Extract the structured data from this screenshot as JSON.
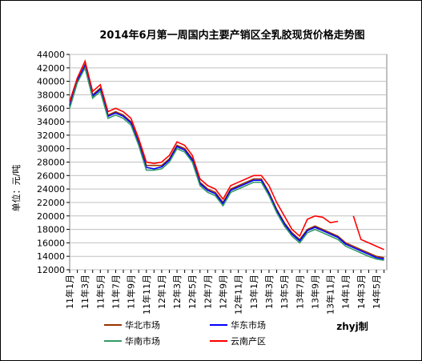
{
  "chart_data": {
    "type": "line",
    "title": "2014年6月第一周国内主要产销区全乳胶现货价格走势图",
    "ylabel": "单位：元/吨",
    "credit": "zhyj制",
    "categories": [
      "11年1月",
      null,
      "11年3月",
      null,
      "11年5月",
      null,
      "11年7月",
      null,
      "11年9月",
      null,
      "11年11月",
      null,
      "12年1月",
      null,
      "12年3月",
      null,
      "12年5月",
      null,
      "12年7月",
      null,
      "12年9月",
      null,
      "12年11月",
      null,
      "13年1月",
      null,
      "13年3月",
      null,
      "13年5月",
      null,
      "13年7月",
      null,
      "13年9月",
      null,
      "13年11月",
      null,
      "14年1月",
      null,
      "14年3月",
      null,
      "14年5月",
      null
    ],
    "ylim": [
      12000,
      44000
    ],
    "yticks": [
      12000,
      14000,
      16000,
      18000,
      20000,
      22000,
      24000,
      26000,
      28000,
      30000,
      32000,
      34000,
      36000,
      38000,
      40000,
      42000,
      44000
    ],
    "grid": true,
    "series": [
      {
        "name": "华北市场",
        "color": "#993300",
        "values": [
          36500,
          40000,
          42500,
          38000,
          39000,
          35000,
          35500,
          35000,
          34000,
          31000,
          27500,
          27500,
          27500,
          28500,
          30500,
          30000,
          28500,
          25000,
          24000,
          23500,
          22000,
          24000,
          24500,
          25000,
          25500,
          25500,
          23500,
          21000,
          19000,
          17500,
          16500,
          18000,
          18500,
          18000,
          17500,
          17000,
          16000,
          15500,
          15000,
          14500,
          14000,
          13800
        ]
      },
      {
        "name": "华东市场",
        "color": "#0000ff",
        "values": [
          36300,
          40200,
          42300,
          37800,
          38800,
          34800,
          35300,
          34800,
          33800,
          30800,
          27200,
          27000,
          27300,
          28300,
          30300,
          29800,
          28300,
          24800,
          23800,
          23300,
          21800,
          23800,
          24300,
          24800,
          25300,
          25300,
          23300,
          20800,
          18800,
          17300,
          16300,
          17800,
          18300,
          17800,
          17300,
          16800,
          15800,
          15300,
          14800,
          14300,
          13800,
          13600
        ]
      },
      {
        "name": "华南市场",
        "color": "#339966",
        "values": [
          36000,
          39800,
          42000,
          37500,
          38500,
          34500,
          35000,
          34500,
          33500,
          30500,
          26800,
          26800,
          27000,
          28000,
          30000,
          29500,
          28000,
          24500,
          23500,
          23000,
          21500,
          23500,
          24000,
          24500,
          25000,
          25000,
          23000,
          20500,
          18500,
          17000,
          16000,
          17500,
          18000,
          17500,
          17000,
          16500,
          15500,
          15000,
          14500,
          14000,
          13600,
          13400
        ]
      },
      {
        "name": "云南产区",
        "color": "#ff0000",
        "values": [
          37000,
          40500,
          43000,
          38500,
          39500,
          35500,
          36000,
          35500,
          34500,
          31500,
          28000,
          27800,
          28000,
          29000,
          31000,
          30500,
          29000,
          25500,
          24500,
          24000,
          22500,
          24500,
          25000,
          25500,
          26000,
          26000,
          24500,
          22000,
          20000,
          18000,
          17000,
          19500,
          20000,
          19800,
          19000,
          19200,
          null,
          20000,
          16500,
          16000,
          15500,
          15000
        ]
      }
    ]
  }
}
